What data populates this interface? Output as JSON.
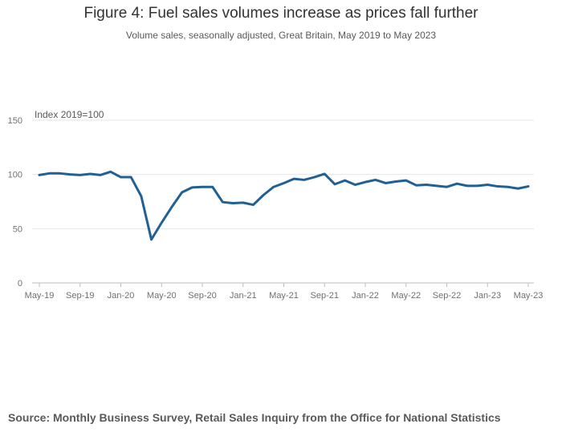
{
  "chart_data": {
    "type": "line",
    "title": "Figure 4: Fuel sales volumes increase as prices fall further",
    "subtitle": "Volume sales, seasonally adjusted, Great Britain, May 2019 to May 2023",
    "ylabel": "Index 2019=100",
    "xlabel": "",
    "ylim": [
      0,
      150
    ],
    "yticks": [
      0,
      50,
      100,
      150
    ],
    "xtick_labels": [
      "May-19",
      "Sep-19",
      "Jan-20",
      "May-20",
      "Sep-20",
      "Jan-21",
      "May-21",
      "Sep-21",
      "Jan-22",
      "May-22",
      "Sep-22",
      "Jan-23",
      "May-23"
    ],
    "grid": true,
    "series": [
      {
        "name": "Fuel sales volumes",
        "color": "#206095",
        "values": [
          99.5,
          101,
          101,
          100,
          99.5,
          100.5,
          99.5,
          102.5,
          97.5,
          97.5,
          80,
          40,
          55.5,
          70,
          83.5,
          88,
          88.5,
          88.5,
          74.5,
          73.5,
          74,
          72,
          81,
          88.5,
          92,
          96,
          95,
          97.5,
          100.5,
          91,
          94.5,
          90.5,
          93,
          95,
          92,
          93.5,
          94.5,
          90,
          90.5,
          89.5,
          88.5,
          91.5,
          89.5,
          89.5,
          90.5,
          89,
          88.5,
          87,
          89
        ]
      }
    ]
  },
  "source": "Source: Monthly Business Survey, Retail Sales Inquiry from the Office for National Statistics"
}
